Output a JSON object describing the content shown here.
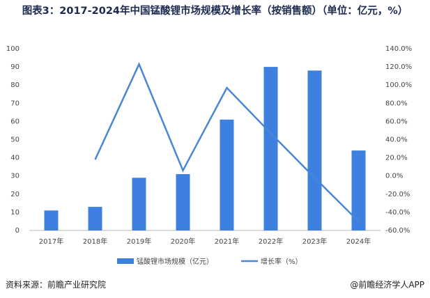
{
  "chart_data": {
    "type": "bar_line",
    "title": "图表3：2017-2024年中国锰酸锂市场规模及增长率（按销售额）（单位：亿元，%）",
    "categories": [
      "2017年",
      "2018年",
      "2019年",
      "2020年",
      "2021年",
      "2022年",
      "2023年",
      "2024年"
    ],
    "series": [
      {
        "name": "锰酸锂市场规模（亿元）",
        "type": "bar",
        "color": "#3d80e0",
        "values": [
          11,
          13,
          29,
          31,
          61,
          90,
          88,
          44
        ]
      },
      {
        "name": "增长率（%）",
        "type": "line",
        "axis": "y2",
        "color": "#4a86d8",
        "values": [
          null,
          18,
          123,
          6,
          97,
          47,
          -2,
          -50
        ]
      }
    ],
    "ylim": [
      0,
      100
    ],
    "yticks": [
      0,
      10,
      20,
      30,
      40,
      50,
      60,
      70,
      80,
      90,
      100
    ],
    "y2lim": [
      -60,
      140
    ],
    "y2ticks": [
      {
        "value": -60,
        "label": "-60.0%"
      },
      {
        "value": -40,
        "label": "-40.0%"
      },
      {
        "value": -20,
        "label": "-20.0%"
      },
      {
        "value": 0,
        "label": "0.0%"
      },
      {
        "value": 20,
        "label": "20.0%"
      },
      {
        "value": 40,
        "label": "40.0%"
      },
      {
        "value": 60,
        "label": "60.0%"
      },
      {
        "value": 80,
        "label": "80.0%"
      },
      {
        "value": 100,
        "label": "100.0%"
      },
      {
        "value": 120,
        "label": "120.0%"
      },
      {
        "value": 140,
        "label": "140.0%"
      }
    ],
    "grid": false,
    "source": "资料来源：前瞻产业研究院",
    "credit": "@前瞻经济学人APP"
  }
}
